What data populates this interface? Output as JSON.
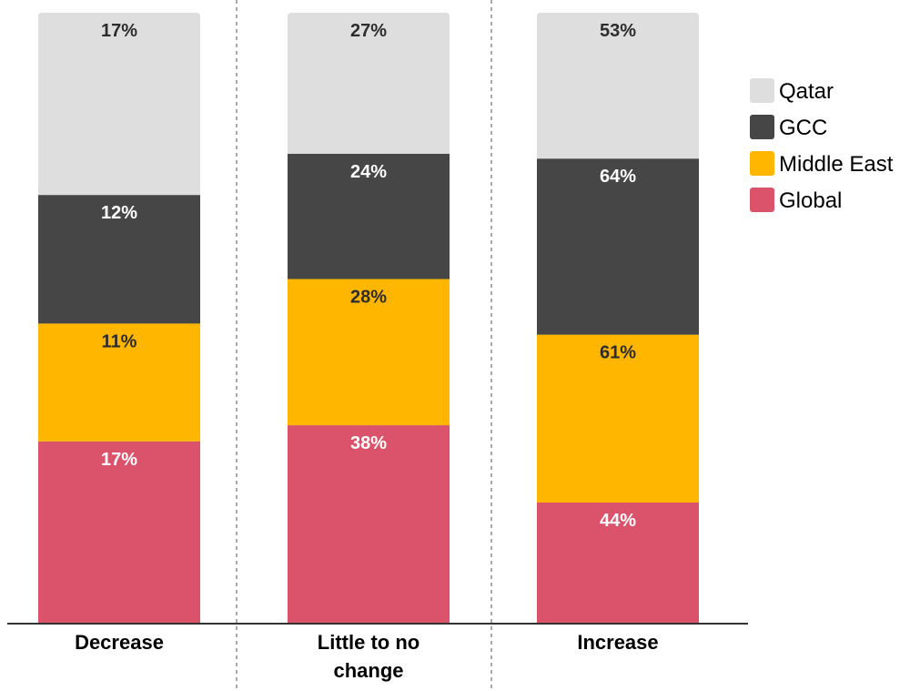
{
  "chart_data": {
    "type": "bar",
    "stacked": true,
    "categories": [
      [
        "Decrease"
      ],
      [
        "Little to no",
        "change"
      ],
      [
        "Increase"
      ]
    ],
    "series": [
      {
        "name": "Global",
        "values": [
          17,
          38,
          44
        ],
        "color": "#db536a",
        "label_color": "#ffffff"
      },
      {
        "name": "Middle East",
        "values": [
          11,
          28,
          61
        ],
        "color": "#ffb600",
        "label_color": "#2d2d2d"
      },
      {
        "name": "GCC",
        "values": [
          12,
          24,
          64
        ],
        "color": "#464646",
        "label_color": "#ffffff"
      },
      {
        "name": "Qatar",
        "values": [
          17,
          27,
          53
        ],
        "color": "#dedede",
        "label_color": "#2d2d2d"
      }
    ],
    "legend": {
      "position": "right",
      "order": [
        "Qatar",
        "GCC",
        "Middle East",
        "Global"
      ]
    },
    "grid": false
  }
}
